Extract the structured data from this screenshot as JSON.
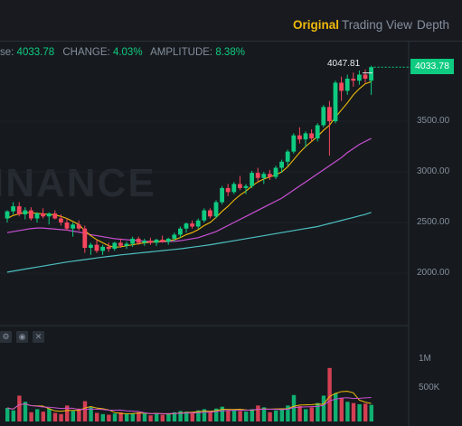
{
  "tabs": [
    {
      "label": "Original",
      "active": true
    },
    {
      "label": "Trading View",
      "active": false
    },
    {
      "label": "Depth",
      "active": false
    }
  ],
  "info": {
    "close_label": "se:",
    "close_value": "4033.78",
    "change_label": "CHANGE:",
    "change_value": "4.03%",
    "amplitude_label": "AMPLITUDE:",
    "amplitude_value": "8.38%"
  },
  "watermark": "INANCE",
  "high_label": "4047.81",
  "last_price": "4033.78",
  "price_axis": [
    "3500.00",
    "3000.00",
    "2500.00",
    "2000.00"
  ],
  "volume_axis": [
    "1M",
    "500K"
  ],
  "colors": {
    "up": "#0ecb81",
    "down": "#f6465d",
    "ma7": "#f0b90b",
    "ma25": "#c94fd4",
    "ma99": "#4dc0c3",
    "accent": "#f0b90b"
  },
  "volume_controls": [
    "gear-icon",
    "eye-icon",
    "close-icon"
  ],
  "chart_data": {
    "type": "candlestick",
    "y_range": [
      1700,
      4200
    ],
    "candles": [
      [
        2540,
        2620,
        2500,
        2610
      ],
      [
        2610,
        2700,
        2580,
        2660
      ],
      [
        2660,
        2700,
        2560,
        2580
      ],
      [
        2580,
        2650,
        2530,
        2620
      ],
      [
        2620,
        2650,
        2520,
        2540
      ],
      [
        2540,
        2600,
        2500,
        2590
      ],
      [
        2590,
        2640,
        2540,
        2560
      ],
      [
        2560,
        2600,
        2480,
        2590
      ],
      [
        2590,
        2620,
        2530,
        2540
      ],
      [
        2540,
        2580,
        2470,
        2500
      ],
      [
        2500,
        2540,
        2420,
        2440
      ],
      [
        2440,
        2500,
        2360,
        2480
      ],
      [
        2480,
        2520,
        2420,
        2440
      ],
      [
        2440,
        2470,
        2200,
        2250
      ],
      [
        2250,
        2300,
        2180,
        2280
      ],
      [
        2280,
        2330,
        2200,
        2220
      ],
      [
        2220,
        2280,
        2180,
        2260
      ],
      [
        2260,
        2300,
        2210,
        2240
      ],
      [
        2240,
        2310,
        2220,
        2300
      ],
      [
        2300,
        2340,
        2250,
        2270
      ],
      [
        2270,
        2310,
        2240,
        2290
      ],
      [
        2290,
        2360,
        2260,
        2340
      ],
      [
        2340,
        2360,
        2280,
        2300
      ],
      [
        2300,
        2340,
        2270,
        2320
      ],
      [
        2320,
        2350,
        2280,
        2300
      ],
      [
        2300,
        2340,
        2270,
        2330
      ],
      [
        2330,
        2370,
        2300,
        2310
      ],
      [
        2310,
        2350,
        2280,
        2340
      ],
      [
        2340,
        2400,
        2310,
        2380
      ],
      [
        2380,
        2460,
        2350,
        2440
      ],
      [
        2440,
        2500,
        2400,
        2490
      ],
      [
        2490,
        2520,
        2440,
        2460
      ],
      [
        2460,
        2540,
        2440,
        2520
      ],
      [
        2520,
        2640,
        2500,
        2620
      ],
      [
        2620,
        2640,
        2540,
        2560
      ],
      [
        2560,
        2720,
        2540,
        2700
      ],
      [
        2700,
        2860,
        2680,
        2840
      ],
      [
        2840,
        2880,
        2760,
        2800
      ],
      [
        2800,
        2900,
        2780,
        2880
      ],
      [
        2880,
        2960,
        2820,
        2840
      ],
      [
        2840,
        2880,
        2780,
        2860
      ],
      [
        2860,
        3010,
        2840,
        2990
      ],
      [
        2990,
        3040,
        2900,
        2940
      ],
      [
        2940,
        3000,
        2880,
        2980
      ],
      [
        2980,
        3020,
        2920,
        2950
      ],
      [
        2950,
        3060,
        2930,
        3040
      ],
      [
        3040,
        3120,
        2990,
        3100
      ],
      [
        3100,
        3220,
        3060,
        3200
      ],
      [
        3200,
        3380,
        3180,
        3360
      ],
      [
        3360,
        3440,
        3280,
        3320
      ],
      [
        3320,
        3400,
        3240,
        3380
      ],
      [
        3380,
        3420,
        3300,
        3330
      ],
      [
        3330,
        3480,
        3300,
        3460
      ],
      [
        3460,
        3660,
        3440,
        3640
      ],
      [
        3640,
        3700,
        3160,
        3500
      ],
      [
        3500,
        3900,
        3480,
        3880
      ],
      [
        3880,
        3940,
        3700,
        3800
      ],
      [
        3800,
        3960,
        3760,
        3920
      ],
      [
        3920,
        3980,
        3840,
        3900
      ],
      [
        3900,
        4000,
        3860,
        3960
      ],
      [
        3960,
        4010,
        3880,
        3920
      ],
      [
        3900,
        4047.81,
        3760,
        4033.78
      ]
    ],
    "volumes": [
      220,
      180,
      420,
      320,
      150,
      200,
      160,
      210,
      140,
      120,
      260,
      170,
      210,
      330,
      240,
      140,
      120,
      110,
      130,
      150,
      120,
      130,
      150,
      130,
      100,
      140,
      110,
      130,
      150,
      170,
      160,
      140,
      180,
      200,
      150,
      210,
      240,
      180,
      190,
      170,
      160,
      200,
      260,
      230,
      150,
      180,
      210,
      260,
      430,
      250,
      200,
      230,
      300,
      420,
      870,
      460,
      380,
      320,
      300,
      280,
      290,
      270
    ],
    "ma7": [
      2540,
      2570,
      2585,
      2600,
      2596,
      2590,
      2585,
      2580,
      2575,
      2560,
      2540,
      2510,
      2480,
      2420,
      2370,
      2330,
      2300,
      2270,
      2255,
      2260,
      2270,
      2280,
      2290,
      2300,
      2305,
      2310,
      2315,
      2320,
      2330,
      2350,
      2380,
      2400,
      2430,
      2470,
      2500,
      2550,
      2610,
      2660,
      2720,
      2770,
      2810,
      2860,
      2900,
      2930,
      2950,
      2970,
      3000,
      3050,
      3120,
      3190,
      3250,
      3300,
      3350,
      3410,
      3460,
      3540,
      3610,
      3680,
      3760,
      3820,
      3870,
      3890
    ],
    "ma25": [
      2400,
      2410,
      2420,
      2430,
      2440,
      2445,
      2445,
      2440,
      2435,
      2430,
      2425,
      2415,
      2405,
      2395,
      2380,
      2370,
      2360,
      2350,
      2340,
      2335,
      2330,
      2325,
      2320,
      2315,
      2312,
      2310,
      2310,
      2312,
      2315,
      2320,
      2330,
      2340,
      2350,
      2370,
      2390,
      2410,
      2440,
      2470,
      2500,
      2530,
      2560,
      2590,
      2620,
      2650,
      2680,
      2710,
      2740,
      2780,
      2820,
      2860,
      2900,
      2940,
      2980,
      3020,
      3060,
      3100,
      3140,
      3190,
      3230,
      3270,
      3300,
      3330
    ],
    "ma99": [
      2010,
      2020,
      2030,
      2040,
      2050,
      2060,
      2070,
      2080,
      2090,
      2100,
      2110,
      2118,
      2126,
      2134,
      2142,
      2150,
      2158,
      2165,
      2172,
      2180,
      2186,
      2192,
      2198,
      2204,
      2210,
      2216,
      2222,
      2228,
      2234,
      2240,
      2248,
      2256,
      2264,
      2272,
      2280,
      2290,
      2300,
      2310,
      2320,
      2330,
      2340,
      2350,
      2360,
      2370,
      2380,
      2390,
      2400,
      2410,
      2420,
      2430,
      2440,
      2450,
      2460,
      2475,
      2490,
      2505,
      2520,
      2535,
      2550,
      2565,
      2580,
      2600
    ]
  }
}
